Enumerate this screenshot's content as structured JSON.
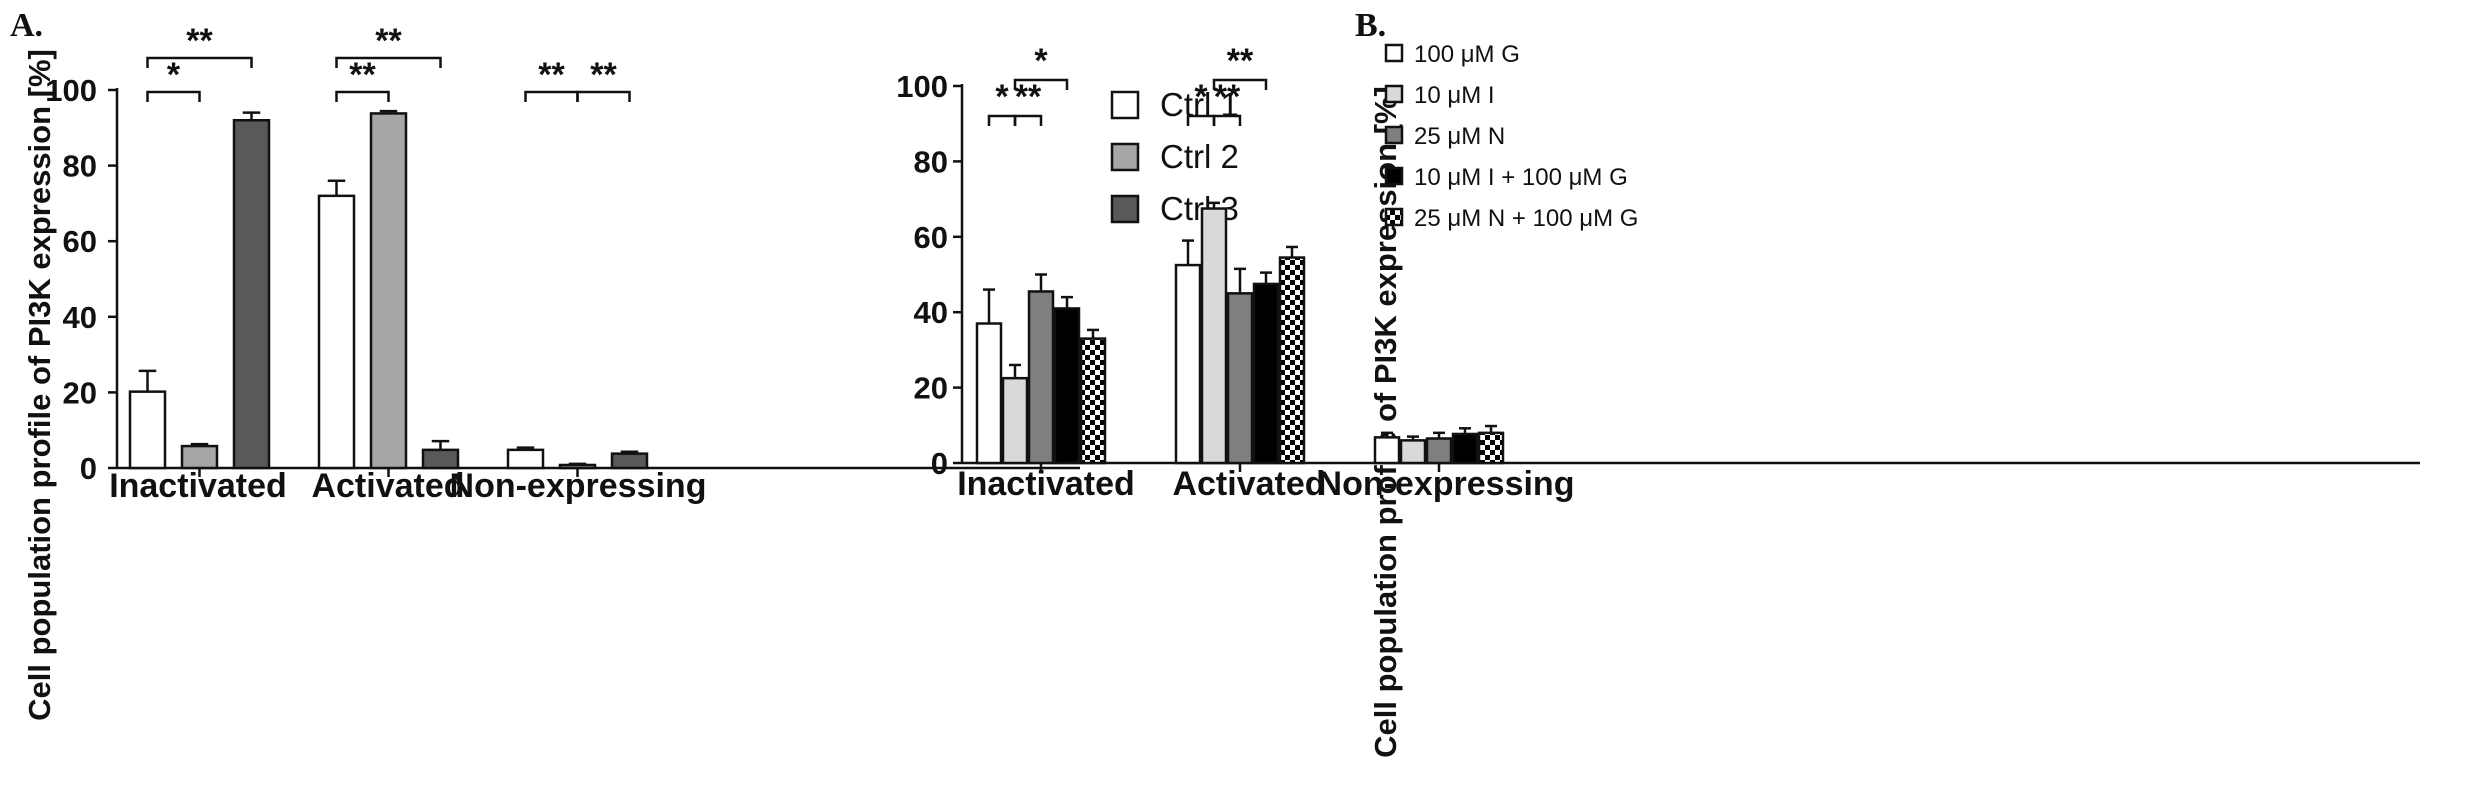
{
  "chart_data": [
    {
      "panel": "A.",
      "type": "bar",
      "ylabel": "Cell population profile of PI3K expression [%]",
      "xlabel": "",
      "ylim": [
        0,
        100
      ],
      "yticks": [
        "0",
        "20",
        "40",
        "60",
        "80",
        "100"
      ],
      "categories": [
        "Inactivated",
        "Activated",
        "Non-expressing"
      ],
      "series": [
        {
          "name": "Ctrl 1",
          "fill": "#ffffff",
          "pattern": "solid",
          "values": [
            20.2,
            72.0,
            4.8
          ],
          "errors": [
            5.5,
            4.0,
            0.6
          ]
        },
        {
          "name": "Ctrl 2",
          "fill": "#a6a6a6",
          "pattern": "solid",
          "values": [
            5.8,
            93.8,
            0.8
          ],
          "errors": [
            0.5,
            0.6,
            0.3
          ]
        },
        {
          "name": "Ctrl 3",
          "fill": "#595959",
          "pattern": "solid",
          "values": [
            92.0,
            4.8,
            3.8
          ],
          "errors": [
            2.0,
            2.3,
            0.5
          ]
        }
      ],
      "legend_position": "right",
      "grid": false,
      "significance": [
        {
          "category": 0,
          "from": 0,
          "to": 1,
          "label": "*",
          "level": 1
        },
        {
          "category": 0,
          "from": 0,
          "to": 2,
          "label": "**",
          "level": 2
        },
        {
          "category": 1,
          "from": 0,
          "to": 1,
          "label": "**",
          "level": 1
        },
        {
          "category": 1,
          "from": 0,
          "to": 2,
          "label": "**",
          "level": 2
        },
        {
          "category": 2,
          "from": 0,
          "to": 1,
          "label": "**",
          "level": 1
        },
        {
          "category": 2,
          "from": 1,
          "to": 2,
          "label": "**",
          "level": 1
        }
      ]
    },
    {
      "panel": "B.",
      "type": "bar",
      "ylabel": "Cell population profile of PI3K expression [%]",
      "xlabel": "",
      "ylim": [
        0,
        100
      ],
      "yticks": [
        "0",
        "20",
        "40",
        "60",
        "80",
        "100"
      ],
      "categories": [
        "Inactivated",
        "Activated",
        "Non-expressing"
      ],
      "series": [
        {
          "name": "100 μM G",
          "fill": "#ffffff",
          "pattern": "solid",
          "values": [
            37.0,
            52.5,
            6.8
          ],
          "errors": [
            9.0,
            6.5,
            1.2
          ]
        },
        {
          "name": "10 μM I",
          "fill": "#d9d9d9",
          "pattern": "solid",
          "values": [
            22.5,
            67.5,
            6.0
          ],
          "errors": [
            3.5,
            1.5,
            1.0
          ]
        },
        {
          "name": "25 μM N",
          "fill": "#7f7f7f",
          "pattern": "solid",
          "values": [
            45.5,
            45.0,
            6.5
          ],
          "errors": [
            4.5,
            6.5,
            1.5
          ]
        },
        {
          "name": "10 μM I + 100 μM G",
          "fill": "#000000",
          "pattern": "solid",
          "values": [
            41.0,
            47.5,
            7.7
          ],
          "errors": [
            3.0,
            3.0,
            1.5
          ]
        },
        {
          "name": "25 μM N + 100 μM G",
          "fill": "#000000",
          "pattern": "checker",
          "values": [
            33.0,
            54.5,
            8.0
          ],
          "errors": [
            2.3,
            2.8,
            1.8
          ]
        }
      ],
      "legend_position": "top-right",
      "grid": false,
      "significance": [
        {
          "category": 0,
          "from": 0,
          "to": 1,
          "label": "*",
          "level": 1
        },
        {
          "category": 0,
          "from": 1,
          "to": 2,
          "label": "**",
          "level": 1
        },
        {
          "category": 0,
          "from": 1,
          "to": 3,
          "label": "*",
          "level": 2
        },
        {
          "category": 1,
          "from": 0,
          "to": 1,
          "label": "*",
          "level": 1
        },
        {
          "category": 1,
          "from": 1,
          "to": 2,
          "label": "**",
          "level": 1
        },
        {
          "category": 1,
          "from": 1,
          "to": 3,
          "label": "**",
          "level": 2
        }
      ]
    }
  ]
}
